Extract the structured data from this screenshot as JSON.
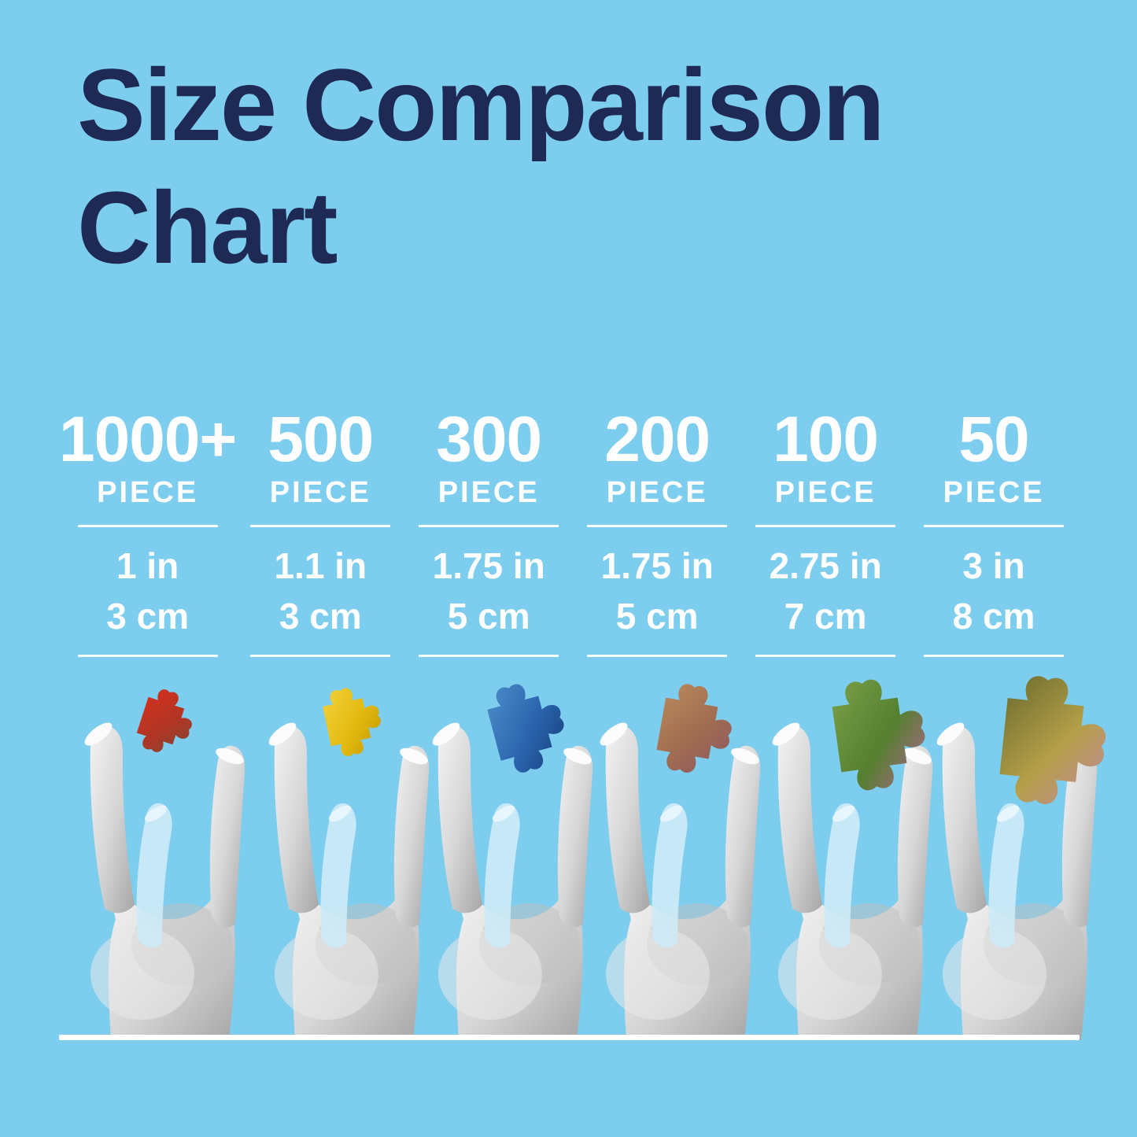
{
  "page": {
    "background_color": "#7CCDEE",
    "title_color": "#1F2A54",
    "text_color": "#FFFFFF"
  },
  "title": {
    "line1": "Size Comparison",
    "line2": "Chart"
  },
  "columns": [
    {
      "count": "1000+",
      "unit": "PIECE",
      "size_in": "1 in",
      "size_cm": "3 cm",
      "piece": {
        "name": "red-brown-puzzle-piece",
        "colors": [
          "#D6311D",
          "#B03524",
          "#7C4A36"
        ],
        "scale": 0.8,
        "rotation": 18
      }
    },
    {
      "count": "500",
      "unit": "PIECE",
      "size_in": "1.1 in",
      "size_cm": "3 cm",
      "piece": {
        "name": "yellow-puzzle-piece",
        "colors": [
          "#F2D23C",
          "#E3B90F",
          "#BE9400"
        ],
        "scale": 0.86,
        "rotation": -12
      }
    },
    {
      "count": "300",
      "unit": "PIECE",
      "size_in": "1.75 in",
      "size_cm": "5 cm",
      "piece": {
        "name": "blue-puzzle-piece",
        "colors": [
          "#4D8FCB",
          "#2A63AC",
          "#143B74"
        ],
        "scale": 1.12,
        "rotation": -15
      }
    },
    {
      "count": "200",
      "unit": "PIECE",
      "size_in": "1.75 in",
      "size_cm": "5 cm",
      "piece": {
        "name": "bronze-puzzle-piece",
        "colors": [
          "#B98A5C",
          "#A06B50",
          "#8A5566"
        ],
        "scale": 1.12,
        "rotation": 10
      }
    },
    {
      "count": "100",
      "unit": "PIECE",
      "size_in": "2.75 in",
      "size_cm": "7 cm",
      "piece": {
        "name": "green-floral-puzzle-piece",
        "colors": [
          "#7BA04A",
          "#55802F",
          "#B8629A"
        ],
        "scale": 1.4,
        "rotation": -8
      }
    },
    {
      "count": "50",
      "unit": "PIECE",
      "size_in": "3 in",
      "size_cm": "8 cm",
      "piece": {
        "name": "landscape-puzzle-piece",
        "colors": [
          "#6B6B2E",
          "#B59F48",
          "#C287A6"
        ],
        "scale": 1.62,
        "rotation": 6
      }
    }
  ],
  "chart_data": {
    "type": "table",
    "title": "Size Comparison Chart",
    "categories": [
      "1000+ PIECE",
      "500 PIECE",
      "300 PIECE",
      "200 PIECE",
      "100 PIECE",
      "50 PIECE"
    ],
    "rows": [
      {
        "label": "inches",
        "values": [
          "1 in",
          "1.1 in",
          "1.75 in",
          "1.75 in",
          "2.75 in",
          "3 in"
        ]
      },
      {
        "label": "centimeters",
        "values": [
          "3 cm",
          "3 cm",
          "5 cm",
          "5 cm",
          "7 cm",
          "8 cm"
        ]
      }
    ]
  }
}
